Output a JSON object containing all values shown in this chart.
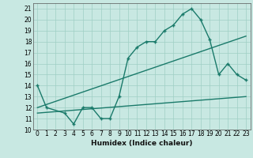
{
  "xlabel": "Humidex (Indice chaleur)",
  "xlim": [
    -0.5,
    23.5
  ],
  "ylim": [
    10,
    21.5
  ],
  "yticks": [
    10,
    11,
    12,
    13,
    14,
    15,
    16,
    17,
    18,
    19,
    20,
    21
  ],
  "xticks": [
    0,
    1,
    2,
    3,
    4,
    5,
    6,
    7,
    8,
    9,
    10,
    11,
    12,
    13,
    14,
    15,
    16,
    17,
    18,
    19,
    20,
    21,
    22,
    23
  ],
  "bg_color": "#c8e8e2",
  "grid_color": "#9fcfc4",
  "line_color": "#1a7a6a",
  "line1_x": [
    0,
    1,
    3,
    4,
    5,
    6,
    7,
    8,
    9,
    10,
    11,
    12,
    13,
    14,
    15,
    16,
    17,
    18,
    19,
    20,
    21,
    22,
    23
  ],
  "line1_y": [
    14,
    12,
    11.5,
    10.5,
    12,
    12,
    11,
    11,
    13,
    16.5,
    17.5,
    18,
    18,
    19,
    19.5,
    20.5,
    21,
    20,
    18.2,
    15,
    16,
    15,
    14.5
  ],
  "line2_x": [
    0,
    23
  ],
  "line2_y": [
    12,
    18.5
  ],
  "line3_x": [
    0,
    23
  ],
  "line3_y": [
    11.5,
    13
  ]
}
